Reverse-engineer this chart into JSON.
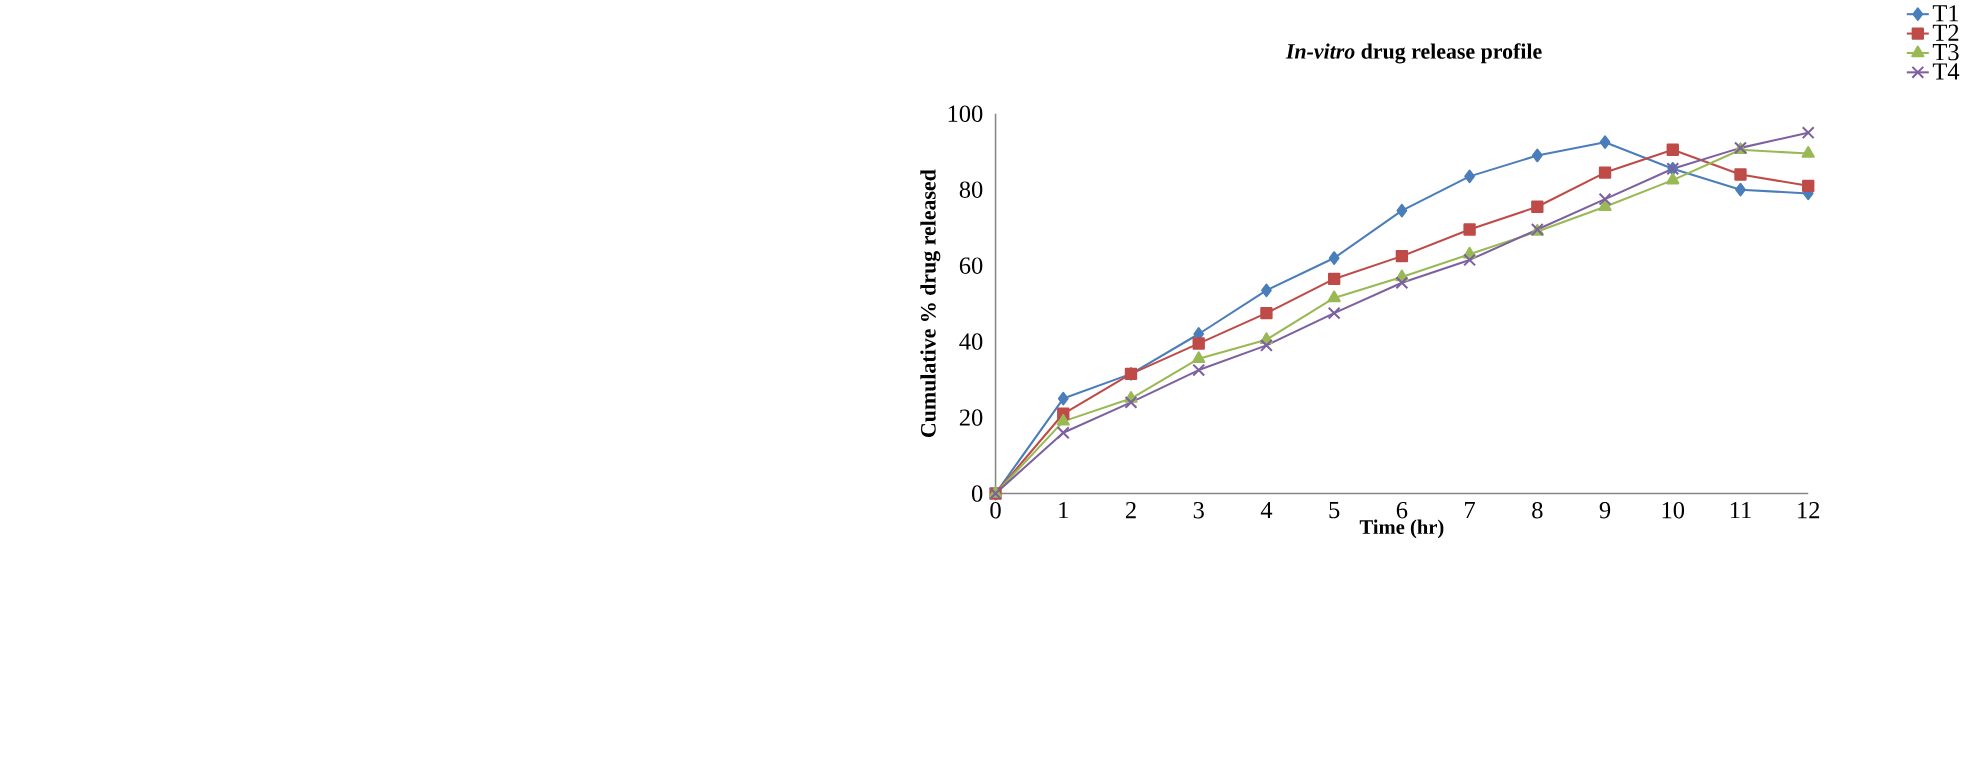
{
  "chart_data": {
    "type": "line",
    "title": "*In-vitro* drug release profile",
    "xlabel": "Time (hr)",
    "ylabel": "Cumulative  % drug released",
    "x": [
      0,
      1,
      2,
      3,
      4,
      5,
      6,
      7,
      8,
      9,
      10,
      11,
      12
    ],
    "xlim": [
      0,
      12
    ],
    "xticks": [
      0,
      1,
      2,
      3,
      4,
      5,
      6,
      7,
      8,
      9,
      10,
      11,
      12
    ],
    "ylim": [
      0,
      100
    ],
    "yticks": [
      0,
      20,
      40,
      60,
      80,
      100
    ],
    "legend": "top right",
    "line_style": "solid",
    "series": [
      {
        "name": "T1",
        "color": "#4a7ebb",
        "marker": "diamond",
        "values": [
          0,
          25,
          31.5,
          42,
          53.5,
          62,
          74.5,
          83.5,
          89,
          92.5,
          85.5,
          80,
          79
        ]
      },
      {
        "name": "T2",
        "color": "#be4b48",
        "marker": "square",
        "values": [
          0,
          21,
          31.5,
          39.5,
          47.5,
          56.5,
          62.5,
          69.5,
          75.5,
          84.5,
          90.5,
          84,
          81
        ]
      },
      {
        "name": "T3",
        "color": "#98b954",
        "marker": "triangle",
        "values": [
          0,
          19,
          25,
          35.5,
          40.5,
          51.5,
          57,
          63,
          69,
          75.5,
          82.5,
          90.5,
          89.5
        ]
      },
      {
        "name": "T4",
        "color": "#7d60a0",
        "marker": "cross",
        "values": [
          0,
          16,
          24,
          32.5,
          39,
          47.5,
          55.5,
          61.5,
          69.5,
          77.5,
          85.5,
          91,
          95
        ]
      }
    ]
  }
}
